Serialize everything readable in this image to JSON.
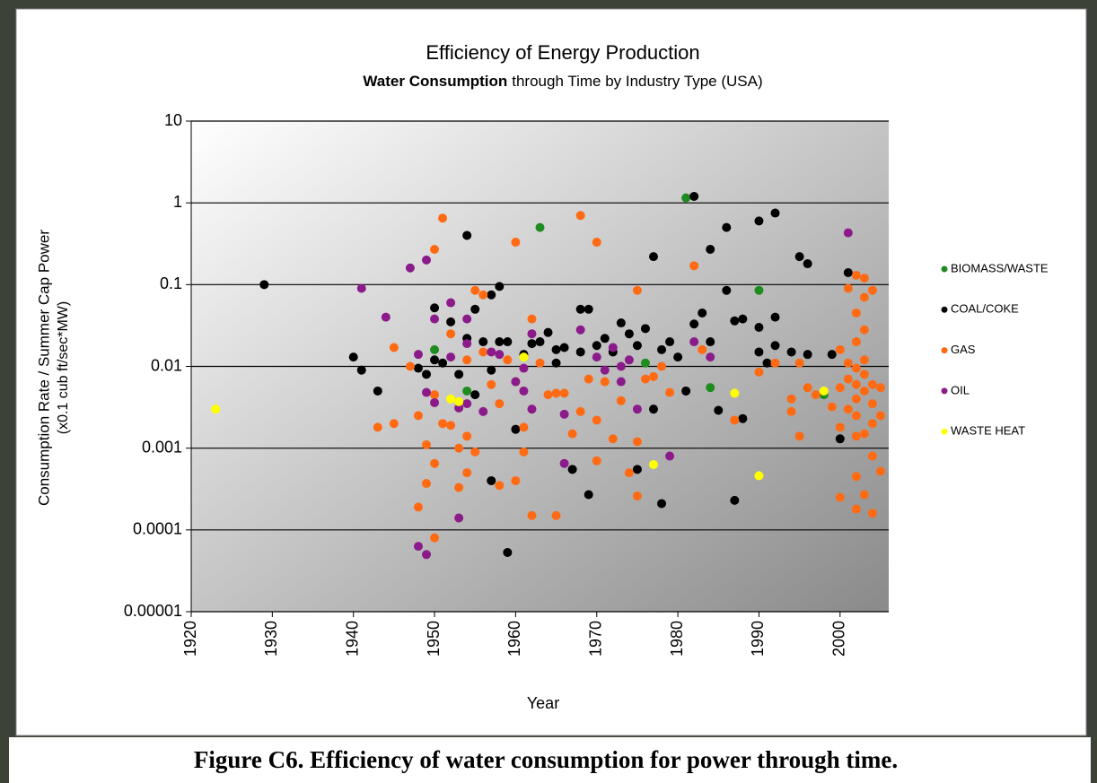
{
  "chart_data": {
    "type": "scatter",
    "title": "Efficiency of Energy Production",
    "subtitle_bold": "Water Consumption",
    "subtitle_rest": "through Time by Industry Type (USA)",
    "ylabel": [
      "Consumption Rate / Summer Cap Power",
      "(x0.1 cub ft/sec*MW)"
    ],
    "xlabel": "Year",
    "caption": "Figure C6. Efficiency of water consumption for power through time.",
    "log_y": true,
    "grid": true,
    "legend": "right",
    "xlim": [
      1920,
      2006
    ],
    "xticks": [
      1920,
      1930,
      1940,
      1950,
      1960,
      1970,
      1980,
      1990,
      2000
    ],
    "ylim": [
      1e-05,
      10
    ],
    "yticks": [
      10,
      1,
      0.1,
      0.01,
      0.001,
      0.0001,
      1e-05
    ],
    "series": [
      {
        "name": "BIOMASS/WASTE",
        "color": "#1e8c1e",
        "x": [
          1950,
          1954,
          1963,
          1976,
          1981,
          1990,
          1998,
          1984
        ],
        "values": [
          0.016,
          0.005,
          0.5,
          0.011,
          1.15,
          0.085,
          0.0045,
          0.0055
        ]
      },
      {
        "name": "COAL/COKE",
        "color": "#000000",
        "x": [
          1929,
          1940,
          1941,
          1943,
          1948,
          1949,
          1950,
          1950,
          1951,
          1952,
          1953,
          1954,
          1954,
          1955,
          1955,
          1956,
          1957,
          1957,
          1957,
          1958,
          1958,
          1959,
          1959,
          1960,
          1961,
          1962,
          1963,
          1964,
          1965,
          1965,
          1966,
          1967,
          1968,
          1968,
          1969,
          1969,
          1970,
          1971,
          1972,
          1973,
          1974,
          1975,
          1975,
          1976,
          1977,
          1977,
          1978,
          1978,
          1979,
          1980,
          1981,
          1982,
          1982,
          1983,
          1984,
          1984,
          1985,
          1986,
          1986,
          1987,
          1987,
          1988,
          1988,
          1990,
          1990,
          1990,
          1991,
          1992,
          1992,
          1992,
          1994,
          1995,
          1996,
          1996,
          1999,
          2000,
          2001
        ],
        "values": [
          0.1,
          0.013,
          0.009,
          0.005,
          0.0095,
          0.008,
          0.052,
          0.012,
          0.011,
          0.035,
          0.008,
          0.4,
          0.022,
          0.05,
          0.0045,
          0.02,
          0.075,
          0.0004,
          0.009,
          0.095,
          0.02,
          5.3e-05,
          0.02,
          0.0017,
          0.014,
          0.019,
          0.02,
          0.026,
          0.016,
          0.011,
          0.017,
          0.00055,
          0.05,
          0.015,
          0.05,
          0.00027,
          0.018,
          0.022,
          0.015,
          0.034,
          0.025,
          0.018,
          0.00055,
          0.029,
          0.22,
          0.003,
          0.00021,
          0.016,
          0.02,
          0.013,
          0.005,
          1.2,
          0.033,
          0.045,
          0.27,
          0.02,
          0.0029,
          0.5,
          0.085,
          0.00023,
          0.036,
          0.038,
          0.0023,
          0.6,
          0.03,
          0.015,
          0.011,
          0.75,
          0.04,
          0.018,
          0.015,
          0.22,
          0.18,
          0.014,
          0.014,
          0.0013,
          0.14
        ]
      },
      {
        "name": "GAS",
        "color": "#ff6a13",
        "x": [
          1943,
          1945,
          1945,
          1947,
          1948,
          1948,
          1949,
          1949,
          1950,
          1950,
          1950,
          1950,
          1951,
          1951,
          1952,
          1952,
          1953,
          1953,
          1954,
          1954,
          1954,
          1955,
          1955,
          1956,
          1956,
          1957,
          1958,
          1958,
          1959,
          1960,
          1960,
          1960,
          1961,
          1961,
          1962,
          1962,
          1963,
          1964,
          1965,
          1965,
          1966,
          1967,
          1968,
          1968,
          1969,
          1970,
          1970,
          1970,
          1971,
          1972,
          1973,
          1974,
          1975,
          1975,
          1975,
          1976,
          1977,
          1978,
          1979,
          1982,
          1983,
          1987,
          1990,
          1992,
          1994,
          1994,
          1995,
          1995,
          1996,
          1997,
          1999,
          2000,
          2000,
          2000,
          2000,
          2001,
          2001,
          2001,
          2001,
          2002,
          2002,
          2002,
          2002,
          2002,
          2002,
          2002,
          2002,
          2002,
          2002,
          2003,
          2003,
          2003,
          2003,
          2003,
          2003,
          2003,
          2003,
          2004,
          2004,
          2004,
          2004,
          2004,
          2004,
          2005,
          2005,
          2005
        ],
        "values": [
          0.0018,
          0.017,
          0.002,
          0.01,
          0.00019,
          0.0025,
          0.0011,
          0.00037,
          0.27,
          8e-05,
          0.00065,
          0.0045,
          0.65,
          0.002,
          0.025,
          0.0019,
          0.00033,
          0.001,
          0.0005,
          0.0014,
          0.012,
          0.085,
          0.0009,
          0.075,
          0.015,
          0.006,
          0.00035,
          0.0035,
          0.012,
          0.33,
          0.0004,
          0.0065,
          0.0018,
          0.0009,
          0.038,
          0.00015,
          0.011,
          0.0045,
          0.00015,
          0.0047,
          0.0047,
          0.0015,
          0.7,
          0.0028,
          0.007,
          0.33,
          0.0022,
          0.0007,
          0.0065,
          0.0013,
          0.0038,
          0.0005,
          0.085,
          0.0012,
          0.00026,
          0.007,
          0.0075,
          0.01,
          0.0048,
          0.17,
          0.016,
          0.0022,
          0.0085,
          0.011,
          0.004,
          0.0028,
          0.011,
          0.0014,
          0.0055,
          0.0045,
          0.0032,
          0.016,
          0.0055,
          0.00025,
          0.0018,
          0.09,
          0.011,
          0.007,
          0.003,
          0.13,
          0.045,
          0.02,
          0.0095,
          0.006,
          0.004,
          0.0025,
          0.0014,
          0.00045,
          0.00018,
          0.12,
          0.07,
          0.028,
          0.012,
          0.008,
          0.005,
          0.0015,
          0.00027,
          0.085,
          0.006,
          0.0035,
          0.002,
          0.0008,
          0.00016,
          0.0055,
          0.0025,
          0.00052
        ]
      },
      {
        "name": "OIL",
        "color": "#8b1a8b",
        "x": [
          1941,
          1944,
          1947,
          1949,
          1948,
          1948,
          1949,
          1949,
          1950,
          1950,
          1952,
          1952,
          1953,
          1953,
          1954,
          1954,
          1954,
          1956,
          1957,
          1958,
          1960,
          1961,
          1961,
          1962,
          1962,
          1966,
          1966,
          1968,
          1970,
          1971,
          1972,
          1973,
          1973,
          1974,
          1975,
          1979,
          1982,
          1984,
          2001
        ],
        "values": [
          0.09,
          0.04,
          0.16,
          0.2,
          0.014,
          6.3e-05,
          5e-05,
          0.0048,
          0.038,
          0.0036,
          0.06,
          0.013,
          0.00014,
          0.0031,
          0.038,
          0.019,
          0.0035,
          0.0028,
          0.015,
          0.014,
          0.0065,
          0.005,
          0.0095,
          0.025,
          0.003,
          0.00065,
          0.0026,
          0.028,
          0.013,
          0.009,
          0.017,
          0.0065,
          0.01,
          0.012,
          0.003,
          0.0008,
          0.02,
          0.013,
          0.43
        ]
      },
      {
        "name": "WASTE HEAT",
        "color": "#ffff00",
        "x": [
          1923,
          1952,
          1953,
          1961,
          1977,
          1987,
          1990,
          1998
        ],
        "values": [
          0.003,
          0.004,
          0.0037,
          0.013,
          0.00063,
          0.0047,
          0.00046,
          0.005
        ]
      }
    ]
  }
}
